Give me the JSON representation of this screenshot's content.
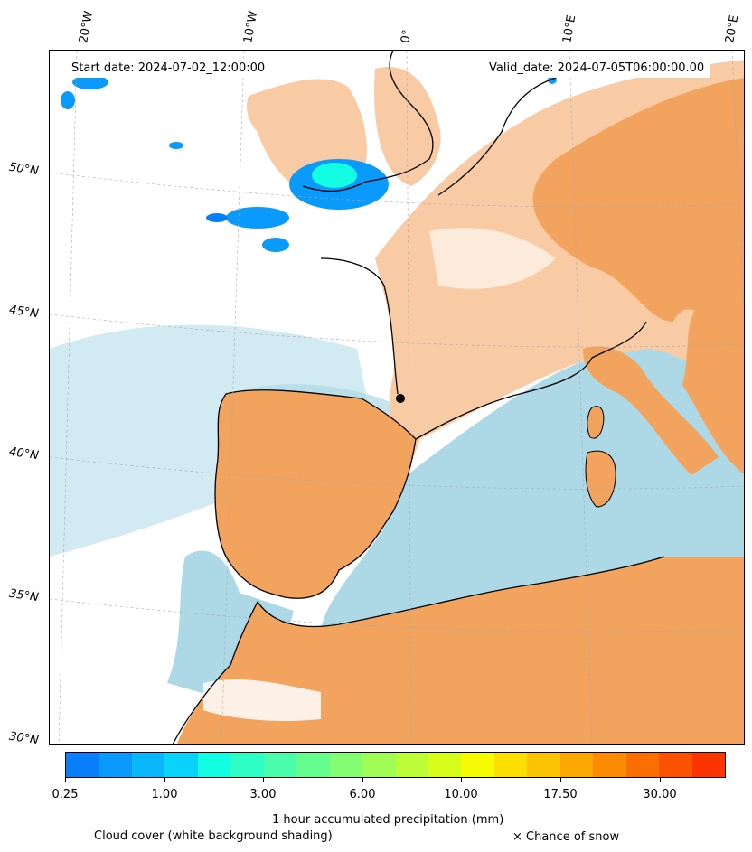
{
  "map": {
    "start_date": "Start date: 2024-07-02_12:00:00",
    "valid_date": "Valid_date: 2024-07-05T06:00:00.00",
    "lon_labels": [
      "20°W",
      "10°W",
      "0°",
      "10°E",
      "20°E"
    ],
    "lat_labels": [
      "50°N",
      "45°N",
      "40°N",
      "35°N",
      "30°N"
    ],
    "marker": "station-dot"
  },
  "colors": {
    "land_dry": "#f2a35e",
    "sea_cloud": "#add8e6",
    "cloud_white": "#ffffff",
    "light_orange": "#f8cba5"
  },
  "colorbar": {
    "ticks": [
      "0.25",
      "1.00",
      "3.00",
      "6.00",
      "10.00",
      "17.50",
      "30.00"
    ],
    "colors": [
      "#0a7ffb",
      "#0a9afb",
      "#0ab7fb",
      "#0ad3fb",
      "#12fde1",
      "#2efdc6",
      "#49fdab",
      "#66fd8f",
      "#84fd72",
      "#a0fd55",
      "#bdfd38",
      "#d9fd1b",
      "#f6fb02",
      "#fbdf02",
      "#fbc402",
      "#fba702",
      "#fb8b02",
      "#fb6e02",
      "#fb5202",
      "#fb3502"
    ],
    "label": "1 hour accumulated precipitation (mm)"
  },
  "legend": {
    "cloud_note": "Cloud cover (white background shading)",
    "snow_note": "× Chance of snow"
  }
}
